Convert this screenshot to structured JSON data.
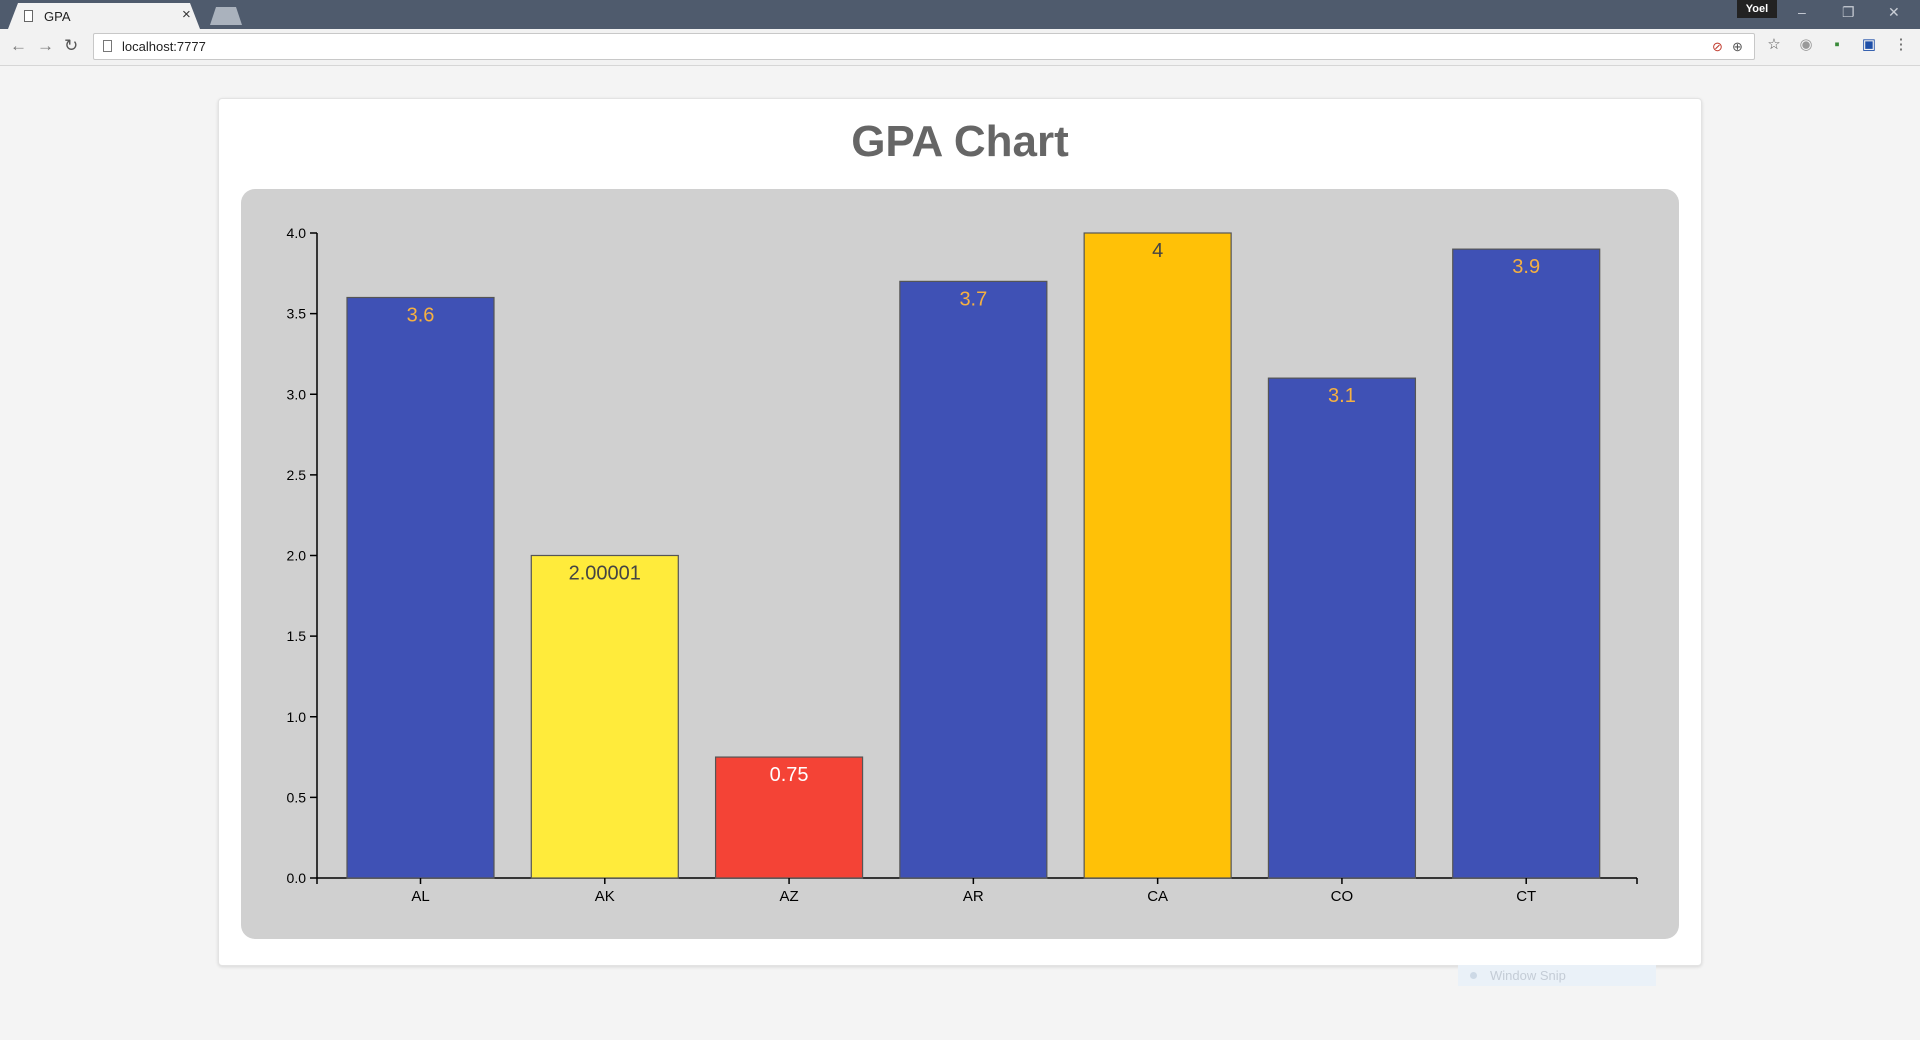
{
  "browser": {
    "tab_title": "GPA",
    "tab_close": "×",
    "profile_name": "Yoel",
    "url": "localhost:7777",
    "window_controls": {
      "minimize": "–",
      "restore": "❐",
      "close": "✕"
    },
    "nav": {
      "back": "←",
      "forward": "→",
      "reload": "↻"
    },
    "icons": [
      "page-icon",
      "blocked-content-icon",
      "zoom-icon",
      "bookmark-star-icon",
      "extension-globe-icon",
      "extension-icon",
      "extension-book-icon",
      "menu-dots-icon"
    ]
  },
  "page": {
    "title": "GPA Chart"
  },
  "overlay": {
    "window_snip_label": "Window Snip"
  },
  "chart_data": {
    "type": "bar",
    "title": "GPA Chart",
    "categories": [
      "AL",
      "AK",
      "AZ",
      "AR",
      "CA",
      "CO",
      "CT"
    ],
    "values": [
      3.6,
      2.00001,
      0.75,
      3.7,
      4,
      3.1,
      3.9
    ],
    "value_labels": [
      "3.6",
      "2.00001",
      "0.75",
      "3.7",
      "4",
      "3.1",
      "3.9"
    ],
    "bar_colors": [
      "#3f51b5",
      "#ffeb3b",
      "#f44336",
      "#3f51b5",
      "#ffc107",
      "#3f51b5",
      "#3f51b5"
    ],
    "label_colors": [
      "#f5b041",
      "#444444",
      "#ffffff",
      "#f5b041",
      "#444444",
      "#f5b041",
      "#f5b041"
    ],
    "background_color": "#d0d0d0",
    "xlabel": "",
    "ylabel": "",
    "ylim": [
      0,
      4.0
    ],
    "yticks": [
      "0.0",
      "0.5",
      "1.0",
      "1.5",
      "2.0",
      "2.5",
      "3.0",
      "3.5",
      "4.0"
    ],
    "grid": false,
    "legend": "none"
  }
}
